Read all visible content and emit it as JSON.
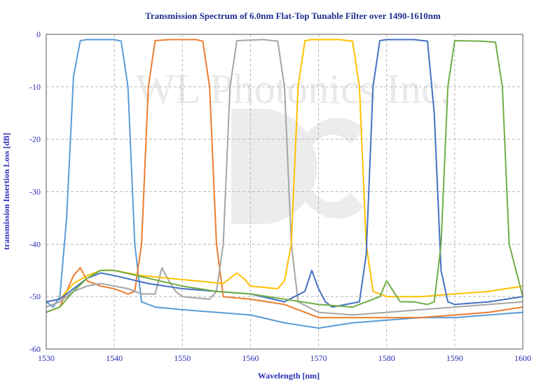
{
  "chart_data": {
    "type": "line",
    "title": "Transmission Spectrum of 6.0nm Flat-Top Tunable Filter over 1490-1610nm",
    "xlabel": "Wavelength [nm]",
    "ylabel": "transmission Insertion Loss [dB]",
    "xlim": [
      1530,
      1600
    ],
    "ylim": [
      -60,
      0
    ],
    "x_ticks": [
      "1530",
      "1540",
      "1550",
      "1560",
      "1570",
      "1580",
      "1590",
      "1600"
    ],
    "y_ticks": [
      "0",
      "-10",
      "-20",
      "-30",
      "-40",
      "-50",
      "-60"
    ],
    "grid": true,
    "watermark": "WL Photonics Inc.",
    "series": [
      {
        "color": "#5b9bd5",
        "x": [
          1530,
          1531,
          1532,
          1533,
          1534,
          1535,
          1536,
          1538,
          1540,
          1541,
          1542,
          1543,
          1544,
          1546,
          1550,
          1555,
          1560,
          1565,
          1570,
          1575,
          1580,
          1585,
          1590,
          1595,
          1600
        ],
        "y": [
          -51,
          -52,
          -50,
          -35,
          -8,
          -1.2,
          -1,
          -1,
          -1,
          -1.3,
          -10,
          -40,
          -51,
          -52,
          -52.5,
          -53,
          -53.5,
          -55,
          -56,
          -55,
          -54.5,
          -54,
          -54,
          -53.5,
          -53
        ]
      },
      {
        "color": "#ed7d31",
        "x": [
          1530,
          1532,
          1534,
          1535,
          1536,
          1538,
          1540,
          1542,
          1543,
          1544,
          1545,
          1546,
          1548,
          1550,
          1552,
          1553,
          1554,
          1555,
          1556,
          1560,
          1565,
          1570,
          1575,
          1580,
          1585,
          1590,
          1595,
          1600
        ],
        "y": [
          -53,
          -52,
          -46,
          -44.5,
          -47,
          -48,
          -48.5,
          -49.5,
          -49,
          -40,
          -10,
          -1.2,
          -1,
          -1,
          -1,
          -1.3,
          -10,
          -40,
          -50,
          -50.5,
          -51.5,
          -54,
          -54,
          -54,
          -54,
          -53.5,
          -53,
          -52
        ]
      },
      {
        "color": "#a5a5a5",
        "x": [
          1530,
          1532,
          1534,
          1536,
          1538,
          1540,
          1542,
          1544,
          1546,
          1547,
          1548,
          1549,
          1550,
          1554,
          1555,
          1556,
          1557,
          1558,
          1562,
          1564,
          1565,
          1566,
          1567,
          1570,
          1575,
          1580,
          1585,
          1590,
          1595,
          1600
        ],
        "y": [
          -52,
          -51,
          -49,
          -48,
          -47.5,
          -48,
          -48.5,
          -49.5,
          -49.5,
          -44.5,
          -47,
          -49,
          -50,
          -50.5,
          -49,
          -40,
          -10,
          -1.2,
          -1,
          -1.3,
          -10,
          -40,
          -51,
          -53,
          -53.5,
          -53,
          -52.5,
          -52,
          -51.5,
          -51
        ]
      },
      {
        "color": "#ffc000",
        "x": [
          1530,
          1532,
          1534,
          1536,
          1538,
          1540,
          1544,
          1548,
          1552,
          1556,
          1558,
          1559,
          1560,
          1564,
          1565,
          1566,
          1567,
          1568,
          1569,
          1573,
          1575,
          1576,
          1577,
          1578,
          1580,
          1585,
          1590,
          1595,
          1600
        ],
        "y": [
          -51,
          -50.5,
          -47.5,
          -46,
          -45,
          -45,
          -46,
          -46.5,
          -47,
          -47.5,
          -45.5,
          -46.5,
          -48,
          -48.5,
          -47,
          -40,
          -10,
          -1.2,
          -1,
          -1,
          -1.3,
          -10,
          -40,
          -49,
          -50,
          -50,
          -49.5,
          -49,
          -48
        ]
      },
      {
        "color": "#4472c4",
        "x": [
          1530,
          1532,
          1534,
          1536,
          1538,
          1540,
          1545,
          1550,
          1555,
          1560,
          1565,
          1568,
          1569,
          1570,
          1571,
          1572,
          1576,
          1577,
          1578,
          1579,
          1580,
          1584,
          1586,
          1587,
          1588,
          1589,
          1590,
          1595,
          1600
        ],
        "y": [
          -51,
          -50.5,
          -48.5,
          -46.5,
          -45.5,
          -46,
          -47.5,
          -48.5,
          -49,
          -49.5,
          -51,
          -49,
          -45,
          -48.5,
          -51,
          -52,
          -51,
          -42,
          -10,
          -1.2,
          -1,
          -1,
          -1.3,
          -15,
          -45,
          -51,
          -51.5,
          -51,
          -50
        ]
      },
      {
        "color": "#70ad47",
        "x": [
          1530,
          1532,
          1534,
          1536,
          1538,
          1540,
          1545,
          1550,
          1555,
          1560,
          1565,
          1570,
          1575,
          1579,
          1580,
          1581,
          1582,
          1584,
          1586,
          1587,
          1588,
          1589,
          1590,
          1594,
          1596,
          1597,
          1598,
          1600
        ],
        "y": [
          -53,
          -52,
          -49,
          -46.5,
          -45,
          -45,
          -46.5,
          -48,
          -49,
          -49.5,
          -50.5,
          -51.5,
          -52,
          -50,
          -47,
          -49,
          -51,
          -51,
          -51.5,
          -51,
          -40,
          -10,
          -1.2,
          -1.3,
          -1.5,
          -10,
          -40,
          -50
        ]
      }
    ]
  }
}
